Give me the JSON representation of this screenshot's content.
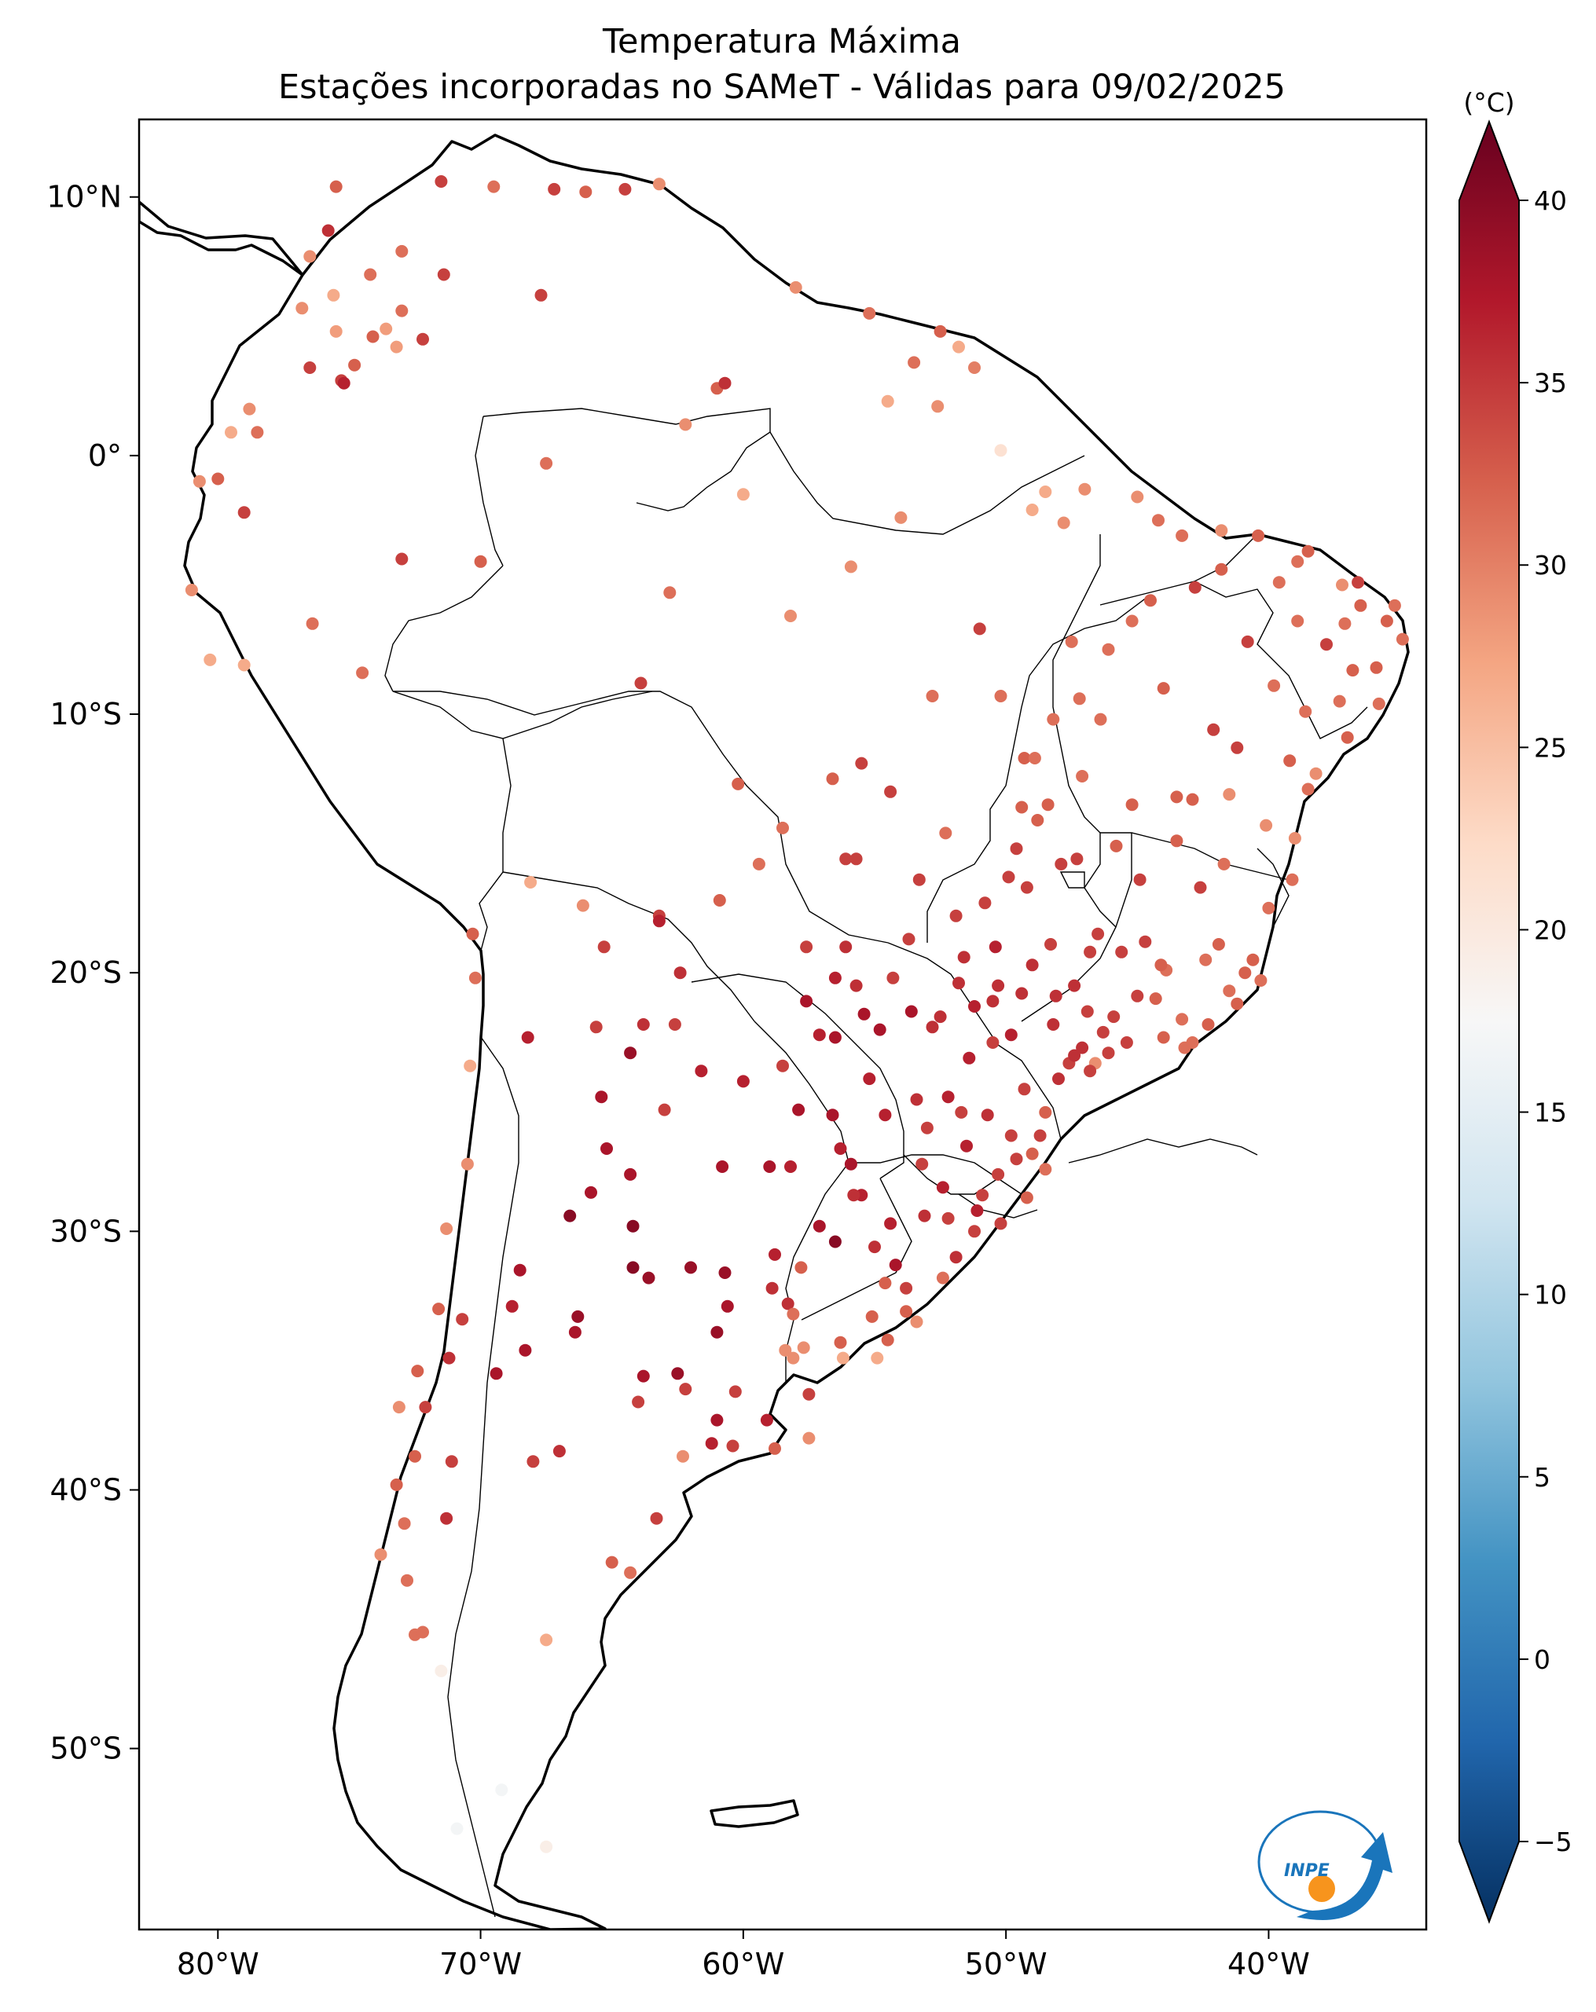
{
  "title": {
    "line1": "Temperatura Máxima",
    "line2": "Estações incorporadas no SAMeT - Válidas para 09/02/2025"
  },
  "axes": {
    "lon_ticks": [
      "80°W",
      "70°W",
      "60°W",
      "50°W",
      "40°W"
    ],
    "lat_ticks": [
      "10°N",
      "0°",
      "10°S",
      "20°S",
      "30°S",
      "40°S",
      "50°S"
    ],
    "lon_range": [
      -83,
      -34
    ],
    "lat_range": [
      -57,
      13
    ]
  },
  "colorbar": {
    "unit": "(°C)",
    "min": -5,
    "max": 40,
    "ticks": [
      "40",
      "35",
      "30",
      "25",
      "20",
      "15",
      "10",
      "5",
      "0",
      "−5"
    ],
    "extend": "both",
    "colormap": "RdBu_r",
    "stops": [
      "#053061",
      "#2166ac",
      "#4393c3",
      "#92c5de",
      "#d1e5f0",
      "#f7f7f7",
      "#fddbc7",
      "#f4a582",
      "#d6604d",
      "#b2182b",
      "#67001f"
    ]
  },
  "logo": {
    "text": "INPE",
    "ring_color": "#1a75bb",
    "dot_color": "#f7941d"
  },
  "stations": [
    [
      -75.5,
      10.4,
      31
    ],
    [
      -71.5,
      10.6,
      33
    ],
    [
      -69.5,
      10.4,
      30
    ],
    [
      -67.2,
      10.3,
      33
    ],
    [
      -66,
      10.2,
      31
    ],
    [
      -64.5,
      10.3,
      33
    ],
    [
      -63.2,
      10.5,
      28
    ],
    [
      -75.8,
      8.7,
      34
    ],
    [
      -73,
      7.9,
      30
    ],
    [
      -74.2,
      7,
      30
    ],
    [
      -71.4,
      7,
      33
    ],
    [
      -76.5,
      7.7,
      28
    ],
    [
      -73.6,
      4.9,
      27
    ],
    [
      -74.1,
      4.6,
      31
    ],
    [
      -75.5,
      4.8,
      27
    ],
    [
      -73.2,
      4.2,
      27
    ],
    [
      -74.8,
      3.5,
      31
    ],
    [
      -75.3,
      2.9,
      33
    ],
    [
      -75.2,
      2.8,
      35
    ],
    [
      -76.5,
      3.4,
      33
    ],
    [
      -72.2,
      4.5,
      33
    ],
    [
      -73,
      5.6,
      30
    ],
    [
      -67.7,
      6.2,
      33
    ],
    [
      -76.8,
      5.7,
      28
    ],
    [
      -75.6,
      6.2,
      26
    ],
    [
      -78.8,
      1.8,
      28
    ],
    [
      -79.5,
      0.9,
      26
    ],
    [
      -78.5,
      0.9,
      30
    ],
    [
      -80,
      -0.9,
      31
    ],
    [
      -79,
      -2.2,
      33
    ],
    [
      -80.7,
      -1,
      28
    ],
    [
      -81,
      -5.2,
      28
    ],
    [
      -80.3,
      -7.9,
      26
    ],
    [
      -79,
      -8.1,
      26
    ],
    [
      -76.4,
      -6.5,
      30
    ],
    [
      -74.5,
      -8.4,
      30
    ],
    [
      -73,
      -4,
      33
    ],
    [
      -70,
      -4.1,
      31
    ],
    [
      -67.5,
      -0.3,
      30
    ],
    [
      -60,
      -1.5,
      26
    ],
    [
      -62.2,
      1.2,
      28
    ],
    [
      -61,
      2.6,
      31
    ],
    [
      -60.7,
      2.8,
      34
    ],
    [
      -58,
      6.5,
      28
    ],
    [
      -55.2,
      5.5,
      30
    ],
    [
      -52.5,
      4.8,
      31
    ],
    [
      -51.2,
      3.4,
      29
    ],
    [
      -51.8,
      4.2,
      26
    ],
    [
      -53.5,
      3.6,
      30
    ],
    [
      -54.5,
      2.1,
      26
    ],
    [
      -52.6,
      1.9,
      28
    ],
    [
      -50.2,
      0.2,
      21
    ],
    [
      -48.5,
      -1.4,
      26
    ],
    [
      -47,
      -1.3,
      28
    ],
    [
      -45,
      -1.6,
      28
    ],
    [
      -49,
      -2.1,
      26
    ],
    [
      -47.8,
      -2.6,
      28
    ],
    [
      -44.2,
      -2.5,
      30
    ],
    [
      -41.8,
      -2.9,
      28
    ],
    [
      -40.4,
      -3.1,
      31
    ],
    [
      -38.5,
      -3.7,
      31
    ],
    [
      -35.2,
      -5.8,
      30
    ],
    [
      -34.9,
      -7.1,
      30
    ],
    [
      -37.2,
      -5,
      28
    ],
    [
      -39.6,
      -4.9,
      30
    ],
    [
      -36.5,
      -5.8,
      31
    ],
    [
      -35.8,
      -9.6,
      30
    ],
    [
      -37,
      -10.9,
      31
    ],
    [
      -38.5,
      -12.9,
      30
    ],
    [
      -39,
      -14.8,
      28
    ],
    [
      -40.3,
      -20.3,
      30
    ],
    [
      -41.5,
      -20.7,
      30
    ],
    [
      -43.2,
      -22.9,
      30
    ],
    [
      -46.6,
      -23.5,
      28
    ],
    [
      -48.5,
      -25.4,
      31
    ],
    [
      -49,
      -27,
      31
    ],
    [
      -48.5,
      -27.6,
      30
    ],
    [
      -49.2,
      -28.7,
      31
    ],
    [
      -51.2,
      -30,
      33
    ],
    [
      -52.4,
      -31.8,
      30
    ],
    [
      -53.4,
      -33.5,
      28
    ],
    [
      -54.9,
      -34.9,
      26
    ],
    [
      -56.2,
      -34.9,
      26
    ],
    [
      -58.4,
      -34.6,
      28
    ],
    [
      -57.5,
      -38,
      28
    ],
    [
      -62.3,
      -38.7,
      28
    ],
    [
      -65,
      -42.8,
      31
    ],
    [
      -63.3,
      -41.1,
      33
    ],
    [
      -64.3,
      -43.2,
      30
    ],
    [
      -67.5,
      -45.8,
      26
    ],
    [
      -69.2,
      -51.6,
      17
    ],
    [
      -67.5,
      -53.8,
      19
    ],
    [
      -70.9,
      -53.1,
      17
    ],
    [
      -71.5,
      -47,
      19
    ],
    [
      -72.5,
      -45.6,
      30
    ],
    [
      -70.3,
      -18.5,
      31
    ],
    [
      -70.2,
      -20.2,
      30
    ],
    [
      -70.4,
      -23.6,
      26
    ],
    [
      -70.5,
      -27.4,
      28
    ],
    [
      -71.3,
      -29.9,
      28
    ],
    [
      -71.6,
      -33,
      31
    ],
    [
      -70.7,
      -33.4,
      33
    ],
    [
      -71.2,
      -34.9,
      34
    ],
    [
      -72.4,
      -35.4,
      31
    ],
    [
      -72.1,
      -36.8,
      33
    ],
    [
      -73.1,
      -36.8,
      28
    ],
    [
      -72.5,
      -38.7,
      31
    ],
    [
      -73.2,
      -39.8,
      31
    ],
    [
      -72.9,
      -41.3,
      30
    ],
    [
      -73.8,
      -42.5,
      28
    ],
    [
      -72.8,
      -43.5,
      30
    ],
    [
      -72.2,
      -45.5,
      30
    ],
    [
      -71.1,
      -38.9,
      33
    ],
    [
      -71.3,
      -41.1,
      34
    ],
    [
      -68.1,
      -16.5,
      26
    ],
    [
      -66.1,
      -17.4,
      28
    ],
    [
      -63.2,
      -17.8,
      33
    ],
    [
      -63.2,
      -18,
      35
    ],
    [
      -65.3,
      -19,
      33
    ],
    [
      -62.6,
      -22,
      33
    ],
    [
      -64.3,
      -23.1,
      37
    ],
    [
      -65.4,
      -24.8,
      36
    ],
    [
      -65.2,
      -26.8,
      36
    ],
    [
      -64.3,
      -27.8,
      36
    ],
    [
      -65.8,
      -28.5,
      36
    ],
    [
      -66.6,
      -29.4,
      38
    ],
    [
      -68.5,
      -31.5,
      36
    ],
    [
      -68.8,
      -32.9,
      35
    ],
    [
      -68.3,
      -34.6,
      36
    ],
    [
      -64.2,
      -31.4,
      38
    ],
    [
      -62,
      -31.4,
      37
    ],
    [
      -60.7,
      -31.6,
      37
    ],
    [
      -58.9,
      -32.2,
      34
    ],
    [
      -60.6,
      -32.9,
      36
    ],
    [
      -61,
      -33.9,
      37
    ],
    [
      -58.3,
      -32.8,
      34
    ],
    [
      -62.5,
      -35.5,
      37
    ],
    [
      -63.8,
      -35.6,
      36
    ],
    [
      -61,
      -37.3,
      36
    ],
    [
      -59.1,
      -37.3,
      35
    ],
    [
      -57.5,
      -36.3,
      33
    ],
    [
      -66.3,
      -33.3,
      37
    ],
    [
      -69.4,
      -35.5,
      36
    ],
    [
      -67,
      -38.5,
      34
    ],
    [
      -68,
      -38.9,
      33
    ],
    [
      -64.2,
      -29.8,
      38
    ],
    [
      -63.6,
      -31.8,
      37
    ],
    [
      -66.4,
      -33.9,
      36
    ],
    [
      -63,
      -25.3,
      33
    ],
    [
      -60.8,
      -27.5,
      36
    ],
    [
      -59,
      -27.5,
      36
    ],
    [
      -58.2,
      -27.5,
      35
    ],
    [
      -55.9,
      -27.4,
      36
    ],
    [
      -55.5,
      -28.6,
      35
    ],
    [
      -57.1,
      -29.8,
      36
    ],
    [
      -58.8,
      -30.9,
      35
    ],
    [
      -56.5,
      -30.4,
      38
    ],
    [
      -54.2,
      -31.3,
      36
    ],
    [
      -53.1,
      -29.4,
      34
    ],
    [
      -51.1,
      -29.2,
      35
    ],
    [
      -50.3,
      -27.8,
      33
    ],
    [
      -49.8,
      -26.3,
      33
    ],
    [
      -51.7,
      -25.4,
      33
    ],
    [
      -53.4,
      -24.9,
      34
    ],
    [
      -54.6,
      -25.5,
      35
    ],
    [
      -52.8,
      -22.1,
      34
    ],
    [
      -54.8,
      -22.2,
      36
    ],
    [
      -57.6,
      -21.1,
      36
    ],
    [
      -56.1,
      -19,
      34
    ],
    [
      -57.6,
      -19,
      33
    ],
    [
      -55.7,
      -15.6,
      33
    ],
    [
      -56.1,
      -15.6,
      33
    ],
    [
      -51.9,
      -17.8,
      33
    ],
    [
      -49.2,
      -16.7,
      33
    ],
    [
      -47.9,
      -15.8,
      33
    ],
    [
      -48.2,
      -10.2,
      30
    ],
    [
      -47.5,
      -7.2,
      30
    ],
    [
      -50.2,
      -9.3,
      30
    ],
    [
      -49.3,
      -11.7,
      31
    ],
    [
      -46.4,
      -10.2,
      30
    ],
    [
      -42.8,
      -5.1,
      33
    ],
    [
      -45.2,
      -6.4,
      30
    ],
    [
      -44,
      -9,
      31
    ],
    [
      -41.2,
      -11.3,
      33
    ],
    [
      -43.5,
      -13.2,
      31
    ],
    [
      -44.9,
      -16.4,
      33
    ],
    [
      -42.6,
      -16.7,
      33
    ],
    [
      -43.9,
      -19.9,
      30
    ],
    [
      -45.9,
      -21.7,
      33
    ],
    [
      -47.4,
      -20.5,
      34
    ],
    [
      -49.4,
      -20.8,
      34
    ],
    [
      -50.5,
      -22.7,
      33
    ],
    [
      -48.2,
      -22,
      34
    ],
    [
      -46.1,
      -23.1,
      33
    ],
    [
      -47.6,
      -23.5,
      33
    ],
    [
      -60.2,
      -12.7,
      31
    ],
    [
      -63.9,
      -8.8,
      33
    ],
    [
      -62.8,
      -5.3,
      30
    ],
    [
      -58.2,
      -6.2,
      28
    ],
    [
      -55.9,
      -4.3,
      28
    ],
    [
      -54,
      -2.4,
      28
    ],
    [
      -51,
      -6.7,
      33
    ],
    [
      -52.8,
      -9.3,
      30
    ],
    [
      -55.5,
      -11.9,
      33
    ],
    [
      -58.5,
      -14.4,
      30
    ],
    [
      -52.3,
      -14.6,
      30
    ],
    [
      -49.4,
      -13.6,
      31
    ],
    [
      -47.1,
      -12.4,
      30
    ],
    [
      -45.2,
      -13.5,
      31
    ],
    [
      -46.5,
      -18.5,
      33
    ],
    [
      -44.3,
      -21,
      31
    ],
    [
      -42.3,
      -22,
      31
    ],
    [
      -41.9,
      -18.9,
      31
    ],
    [
      -40,
      -17.5,
      30
    ],
    [
      -39.1,
      -16.4,
      30
    ],
    [
      -41.5,
      -13.1,
      28
    ],
    [
      -39.8,
      -8.9,
      30
    ],
    [
      -40.8,
      -7.2,
      33
    ],
    [
      -36.8,
      -8.3,
      31
    ],
    [
      -38.9,
      -6.4,
      30
    ],
    [
      -37.8,
      -7.3,
      33
    ],
    [
      -52.2,
      -24.8,
      35
    ],
    [
      -51.4,
      -23.3,
      35
    ],
    [
      -53,
      -26,
      33
    ],
    [
      -54.4,
      -29.7,
      35
    ],
    [
      -53.8,
      -32.2,
      33
    ],
    [
      -51.9,
      -31,
      34
    ],
    [
      -50.2,
      -29.7,
      33
    ],
    [
      -49.6,
      -27.2,
      33
    ],
    [
      -48.7,
      -26.3,
      33
    ],
    [
      -47.1,
      -22.9,
      34
    ],
    [
      -46.3,
      -22.3,
      33
    ],
    [
      -45.4,
      -22.7,
      33
    ],
    [
      -44,
      -22.5,
      31
    ],
    [
      -42.9,
      -22.7,
      30
    ],
    [
      -41.2,
      -21.2,
      31
    ],
    [
      -44.1,
      -19.7,
      31
    ],
    [
      -45.6,
      -19.2,
      33
    ],
    [
      -48.3,
      -18.9,
      33
    ],
    [
      -50.4,
      -19,
      35
    ],
    [
      -51.8,
      -20.4,
      34
    ],
    [
      -52.5,
      -21.7,
      34
    ],
    [
      -53.6,
      -21.5,
      36
    ],
    [
      -54.3,
      -20.2,
      33
    ],
    [
      -55.2,
      -24.1,
      35
    ],
    [
      -56.6,
      -25.5,
      36
    ],
    [
      -57.9,
      -25.3,
      36
    ],
    [
      -56.3,
      -26.8,
      35
    ],
    [
      -55.8,
      -28.6,
      34
    ],
    [
      -53.2,
      -27.4,
      33
    ],
    [
      -51.5,
      -26.7,
      35
    ],
    [
      -50.7,
      -25.5,
      34
    ],
    [
      -49.3,
      -24.5,
      33
    ],
    [
      -48,
      -24.1,
      34
    ],
    [
      -46.8,
      -23.8,
      33
    ],
    [
      -47.4,
      -23.2,
      34
    ],
    [
      -49.8,
      -22.4,
      35
    ],
    [
      -51.2,
      -21.3,
      35
    ],
    [
      -50.5,
      -21.1,
      34
    ],
    [
      -46.9,
      -21.5,
      33
    ],
    [
      -45,
      -20.9,
      33
    ],
    [
      -43.3,
      -21.8,
      30
    ],
    [
      -40.6,
      -19.5,
      31
    ],
    [
      -38.2,
      -12.3,
      28
    ],
    [
      -37.3,
      -9.5,
      30
    ],
    [
      -35.9,
      -8.2,
      31
    ],
    [
      -35.5,
      -6.4,
      31
    ],
    [
      -36.6,
      -4.9,
      33
    ],
    [
      -38.9,
      -4.1,
      30
    ],
    [
      -41.8,
      -4.4,
      31
    ],
    [
      -43.3,
      -3.1,
      30
    ],
    [
      -44.5,
      -5.6,
      31
    ],
    [
      -46.1,
      -7.5,
      30
    ],
    [
      -47.2,
      -9.4,
      30
    ],
    [
      -48.9,
      -11.7,
      30
    ],
    [
      -48.4,
      -13.5,
      31
    ],
    [
      -49.9,
      -16.3,
      33
    ],
    [
      -50.8,
      -17.3,
      33
    ],
    [
      -53.3,
      -16.4,
      33
    ],
    [
      -54.4,
      -13,
      33
    ],
    [
      -56.6,
      -12.5,
      31
    ],
    [
      -59.4,
      -15.8,
      30
    ],
    [
      -60.9,
      -17.2,
      31
    ],
    [
      -62.4,
      -20,
      34
    ],
    [
      -61.6,
      -23.8,
      35
    ],
    [
      -60,
      -24.2,
      35
    ],
    [
      -58.5,
      -23.6,
      33
    ],
    [
      -57.1,
      -22.4,
      35
    ],
    [
      -56.5,
      -22.5,
      36
    ],
    [
      -55.4,
      -21.6,
      36
    ],
    [
      -55.7,
      -20.5,
      34
    ],
    [
      -56.5,
      -20.2,
      35
    ],
    [
      -43.5,
      -14.9,
      31
    ],
    [
      -41.7,
      -15.8,
      30
    ],
    [
      -40.1,
      -14.3,
      28
    ],
    [
      -37.1,
      -6.5,
      30
    ],
    [
      -38.6,
      -9.9,
      30
    ],
    [
      -39.2,
      -11.8,
      31
    ],
    [
      -42.1,
      -10.6,
      33
    ],
    [
      -42.9,
      -13.3,
      31
    ],
    [
      -45.8,
      -15.1,
      31
    ],
    [
      -47.3,
      -15.6,
      33
    ],
    [
      -48.8,
      -14.1,
      31
    ],
    [
      -49.6,
      -15.2,
      33
    ],
    [
      -46.8,
      -19.2,
      33
    ],
    [
      -44.7,
      -18.8,
      33
    ],
    [
      -42.4,
      -19.5,
      30
    ],
    [
      -40.9,
      -20,
      31
    ],
    [
      -48.1,
      -20.9,
      34
    ],
    [
      -49,
      -19.7,
      34
    ],
    [
      -50.3,
      -20.5,
      34
    ],
    [
      -51.6,
      -19.4,
      34
    ],
    [
      -53.7,
      -18.7,
      33
    ],
    [
      -52.4,
      -28.3,
      35
    ],
    [
      -52.2,
      -29.5,
      33
    ],
    [
      -50.9,
      -28.6,
      33
    ],
    [
      -54.6,
      -32,
      31
    ],
    [
      -55,
      -30.6,
      34
    ],
    [
      -57.8,
      -31.4,
      31
    ],
    [
      -58.1,
      -33.2,
      30
    ],
    [
      -56.3,
      -34.3,
      31
    ],
    [
      -55.1,
      -33.3,
      31
    ],
    [
      -54.5,
      -34.2,
      31
    ],
    [
      -53.8,
      -33.1,
      31
    ],
    [
      -57.7,
      -34.5,
      28
    ],
    [
      -58.1,
      -34.9,
      28
    ],
    [
      -68.2,
      -22.5,
      35
    ],
    [
      -63.8,
      -22,
      34
    ],
    [
      -65.6,
      -22.1,
      33
    ],
    [
      -64,
      -36.6,
      33
    ],
    [
      -62.2,
      -36.1,
      33
    ],
    [
      -60.3,
      -36.2,
      33
    ],
    [
      -61.2,
      -38.2,
      35
    ],
    [
      -58.8,
      -38.4,
      31
    ],
    [
      -60.4,
      -38.3,
      33
    ]
  ]
}
